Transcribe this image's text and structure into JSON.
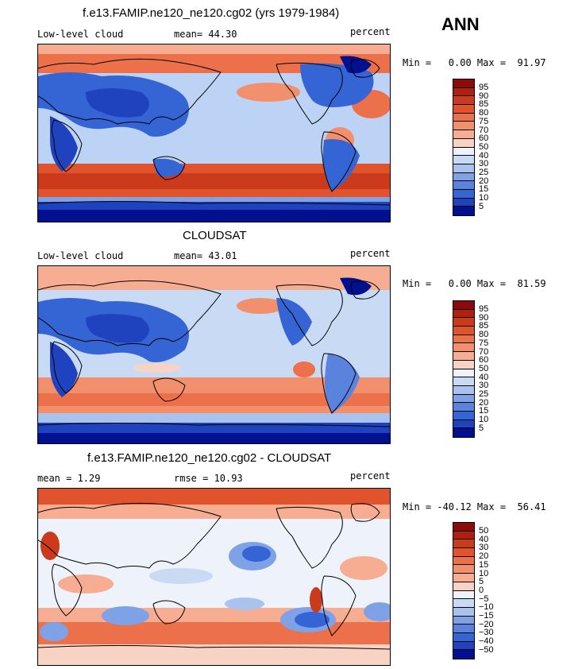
{
  "season": "ANN",
  "panels": [
    {
      "title": "f.e13.FAMIP.ne120_ne120.cg02 (yrs 1979-1984)",
      "left_label": "Low-level cloud",
      "mid_label": "mean=  44.30",
      "right_label": "percent",
      "minmax": "Min =   0.00 Max =  91.97",
      "scale": "abs",
      "colorbar_ticks": [
        "95",
        "90",
        "85",
        "80",
        "75",
        "70",
        "60",
        "50",
        "40",
        "30",
        "25",
        "20",
        "15",
        "10",
        "5"
      ]
    },
    {
      "title": "CLOUDSAT",
      "left_label": "Low-level cloud",
      "mid_label": "mean=  43.01",
      "right_label": "percent",
      "minmax": "Min =   0.00 Max =  81.59",
      "scale": "abs",
      "colorbar_ticks": [
        "95",
        "90",
        "85",
        "80",
        "75",
        "70",
        "60",
        "50",
        "40",
        "30",
        "25",
        "20",
        "15",
        "10",
        "5"
      ]
    },
    {
      "title": "f.e13.FAMIP.ne120_ne120.cg02 - CLOUDSAT",
      "left_label": "mean =    1.29",
      "mid_label": "rmse =   10.93",
      "right_label": "percent",
      "minmax": "Min = -40.12 Max =  56.41",
      "scale": "diff",
      "colorbar_ticks": [
        "50",
        "40",
        "30",
        "20",
        "15",
        "10",
        "5",
        "0",
        "−5",
        "−10",
        "−15",
        "−20",
        "−30",
        "−40",
        "−50"
      ]
    }
  ],
  "colors": {
    "scale16": [
      "#8b0a0a",
      "#b0200f",
      "#cc3a1c",
      "#e0532c",
      "#ec7049",
      "#f28f6c",
      "#f6ad92",
      "#f8d3c3",
      "#eef2fa",
      "#c9dbf4",
      "#a9c3ee",
      "#7fa2e6",
      "#5a83de",
      "#3564d4",
      "#1f43bf",
      "#00108f"
    ]
  }
}
